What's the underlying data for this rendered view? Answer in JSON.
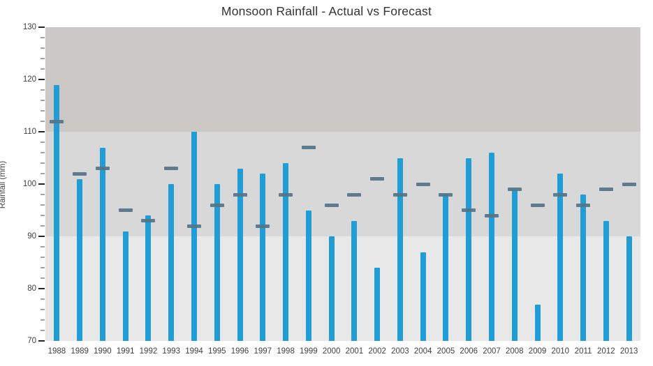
{
  "header": {
    "title": "Monsoon Rainfall - Actual vs Forecast"
  },
  "chart_data": {
    "type": "bar",
    "title": "Monsoon Rainfall - Actual vs Forecast",
    "xlabel": "",
    "ylabel": "Rainfall (mm)",
    "ylim": [
      70,
      130
    ],
    "y_major_ticks": [
      70,
      80,
      90,
      100,
      110,
      120,
      130
    ],
    "y_minor_step": 2,
    "grid": false,
    "legend_position": "none",
    "categories": [
      "1988",
      "1989",
      "1990",
      "1991",
      "1992",
      "1993",
      "1994",
      "1995",
      "1996",
      "1997",
      "1998",
      "1999",
      "2000",
      "2001",
      "2002",
      "2003",
      "2004",
      "2005",
      "2006",
      "2007",
      "2008",
      "2009",
      "2010",
      "2011",
      "2012",
      "2013"
    ],
    "series": [
      {
        "name": "Actual",
        "mark": "bar",
        "color": "#219dd6",
        "values": [
          119,
          101,
          107,
          91,
          94,
          100,
          110,
          100,
          103,
          102,
          104,
          95,
          90,
          93,
          84,
          105,
          87,
          98,
          105,
          106,
          99,
          77,
          102,
          98,
          93,
          90
        ]
      },
      {
        "name": "Forecast",
        "mark": "dash",
        "color": "#547487",
        "values": [
          112,
          102,
          103,
          95,
          93,
          103,
          92,
          96,
          98,
          92,
          98,
          107,
          96,
          98,
          101,
          98,
          100,
          98,
          95,
          94,
          99,
          96,
          98,
          96,
          99,
          100
        ]
      }
    ],
    "background_bands": [
      {
        "from": 110,
        "to": 130,
        "color": "#cbc8c6"
      },
      {
        "from": 90,
        "to": 110,
        "color": "#d9d8d8"
      },
      {
        "from": 70,
        "to": 90,
        "color": "#e9e8e8"
      }
    ],
    "axis_colors": {
      "major_tick": "#262626",
      "minor_tick": "#a3a3a3",
      "label": "#404040"
    }
  }
}
